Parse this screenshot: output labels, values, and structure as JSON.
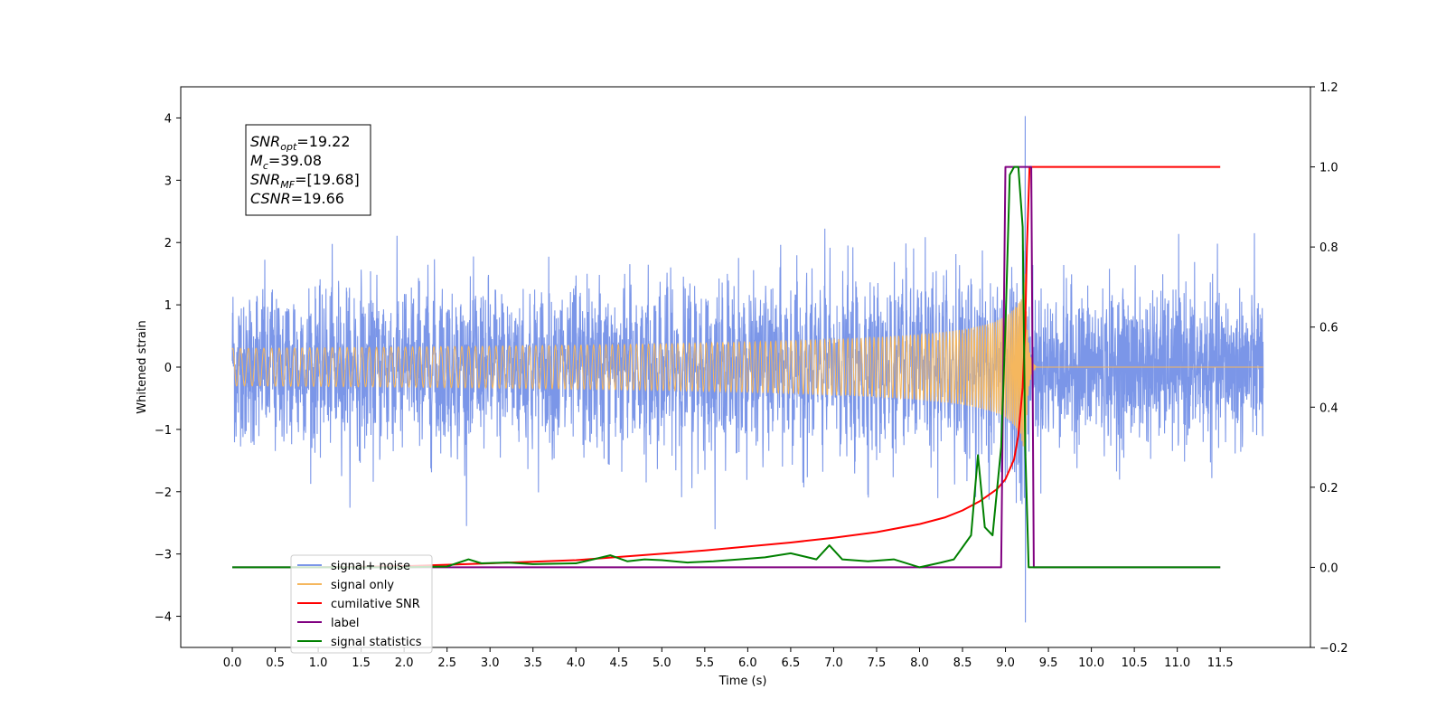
{
  "chart_data": {
    "type": "line",
    "xlabel": "Time (s)",
    "ylabel": "Whitened strain",
    "xlim": [
      -0.6,
      12.55
    ],
    "ylim": [
      -4.5,
      4.5
    ],
    "y2lim": [
      -0.2,
      1.2
    ],
    "x_ticks": [
      "0.0",
      "0.5",
      "1.0",
      "1.5",
      "2.0",
      "2.5",
      "3.0",
      "3.5",
      "4.0",
      "4.5",
      "5.0",
      "5.5",
      "6.0",
      "6.5",
      "7.0",
      "7.5",
      "8.0",
      "8.5",
      "9.0",
      "9.5",
      "10.0",
      "10.5",
      "11.0",
      "11.5"
    ],
    "y_ticks": [
      "4",
      "3",
      "2",
      "1",
      "0",
      "−1",
      "−2",
      "−3",
      "−4"
    ],
    "y2_ticks": [
      "1.2",
      "1.0",
      "0.8",
      "0.6",
      "0.4",
      "0.2",
      "0.0",
      "−0.2"
    ],
    "legend_position": "lower-left",
    "annotation": [
      {
        "sym": "SNR",
        "sub": "opt",
        "val": "=19.22"
      },
      {
        "sym": "M",
        "sub": "c",
        "val": "=39.08"
      },
      {
        "sym": "SNR",
        "sub": "MF",
        "val": "=[19.68]"
      },
      {
        "sym": "CSNR",
        "sub": "",
        "val": "=19.66"
      }
    ],
    "series": [
      {
        "name": "signal+ noise",
        "axis": "left",
        "color": "#7b96e8",
        "noise_sigma": 0.6,
        "duration": 12.0,
        "peak": {
          "t": 9.23,
          "max": 4.03,
          "min": -4.1
        }
      },
      {
        "name": "signal only",
        "axis": "left",
        "color": "#f5b75e",
        "merger_time": 9.23,
        "max_amplitude": 1.5
      },
      {
        "name": "cumilative SNR",
        "axis": "right",
        "color": "#ff0000",
        "x": [
          1.0,
          2.0,
          3.0,
          4.0,
          5.0,
          5.5,
          6.0,
          6.5,
          7.0,
          7.5,
          8.0,
          8.3,
          8.5,
          8.7,
          8.9,
          9.0,
          9.1,
          9.15,
          9.2,
          9.23,
          9.25,
          9.28,
          11.5
        ],
        "values": [
          0.0,
          0.003,
          0.01,
          0.018,
          0.034,
          0.042,
          0.052,
          0.062,
          0.074,
          0.088,
          0.108,
          0.125,
          0.142,
          0.165,
          0.195,
          0.22,
          0.27,
          0.33,
          0.45,
          0.6,
          0.8,
          1.0,
          1.0
        ]
      },
      {
        "name": "label",
        "axis": "right",
        "color": "#800080",
        "x": [
          0.0,
          8.95,
          9.0,
          9.3,
          9.33,
          11.5
        ],
        "values": [
          0.0,
          0.0,
          1.0,
          1.0,
          0.0,
          0.0
        ]
      },
      {
        "name": "signal statistics",
        "axis": "right",
        "color": "#008000",
        "x": [
          0.0,
          2.0,
          2.5,
          2.75,
          2.9,
          3.2,
          3.5,
          4.0,
          4.2,
          4.4,
          4.6,
          4.8,
          5.0,
          5.3,
          5.6,
          5.9,
          6.2,
          6.5,
          6.8,
          6.95,
          7.1,
          7.4,
          7.7,
          8.0,
          8.25,
          8.4,
          8.6,
          8.68,
          8.76,
          8.85,
          8.95,
          9.0,
          9.05,
          9.1,
          9.15,
          9.2,
          9.23,
          9.27,
          11.5
        ],
        "values": [
          0.0,
          0.0,
          0.002,
          0.02,
          0.01,
          0.012,
          0.008,
          0.01,
          0.02,
          0.03,
          0.015,
          0.02,
          0.018,
          0.012,
          0.015,
          0.02,
          0.025,
          0.035,
          0.02,
          0.055,
          0.02,
          0.015,
          0.02,
          0.0,
          0.012,
          0.02,
          0.08,
          0.28,
          0.1,
          0.08,
          0.3,
          0.6,
          0.98,
          1.0,
          1.0,
          0.85,
          0.3,
          0.0,
          0.0
        ]
      }
    ]
  }
}
